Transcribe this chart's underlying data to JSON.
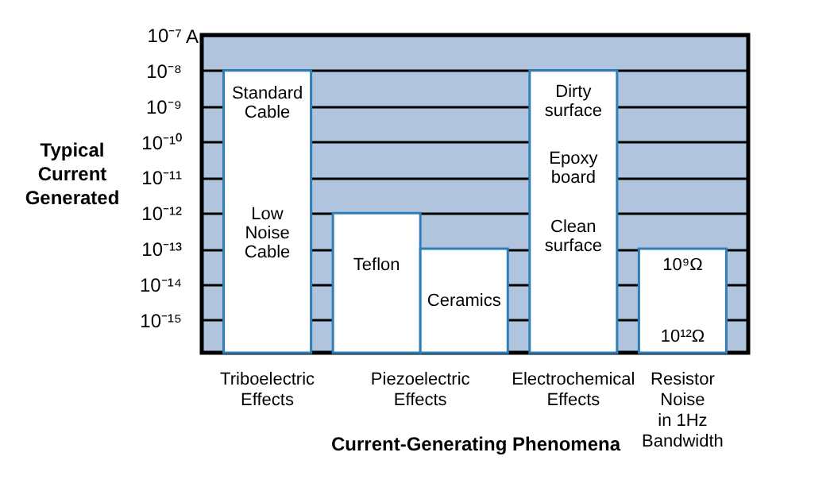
{
  "chart_data": {
    "type": "bar",
    "xlabel": "Current-Generating Phenomena",
    "ylabel": "Typical\nCurrent\nGenerated",
    "categories": [
      "Triboelectric\nEffects",
      "Piezoelectric\nEffects",
      "Electrochemical\nEffects",
      "Resistor\nNoise\nin 1Hz\nBandwidth"
    ],
    "series": [
      {
        "color": "#ffffff",
        "values": [
          1e-08,
          1e-12,
          1e-08,
          1e-13
        ]
      },
      {
        "name": "Ceramics",
        "color": "#ffffff",
        "values": [
          null,
          1e-13,
          null,
          null
        ]
      }
    ],
    "log": true,
    "ylim": [
      1.2e-16,
      1e-07
    ],
    "yticks": [
      {
        "value": 1e-07,
        "label": "10⁻⁷"
      },
      {
        "value": 1e-08,
        "label": "10⁻⁸"
      },
      {
        "value": 1e-09,
        "label": "10⁻⁹"
      },
      {
        "value": 1e-10,
        "label": "10⁻¹⁰"
      },
      {
        "value": 1e-11,
        "label": "10⁻¹¹"
      },
      {
        "value": 1e-12,
        "label": "10⁻¹²"
      },
      {
        "value": 1e-13,
        "label": "10⁻¹³"
      },
      {
        "value": 1e-14,
        "label": "10⁻¹⁴"
      },
      {
        "value": 1e-15,
        "label": "10⁻¹⁵"
      }
    ],
    "grid": "y",
    "annotations": [
      "Standard\nCable",
      "Low\nNoise\nCable",
      "Teflon",
      "Dirty\nsurface",
      "Epoxy\nboard",
      "Clean\nsurface",
      "10⁹Ω",
      "10¹²Ω",
      "A"
    ]
  }
}
